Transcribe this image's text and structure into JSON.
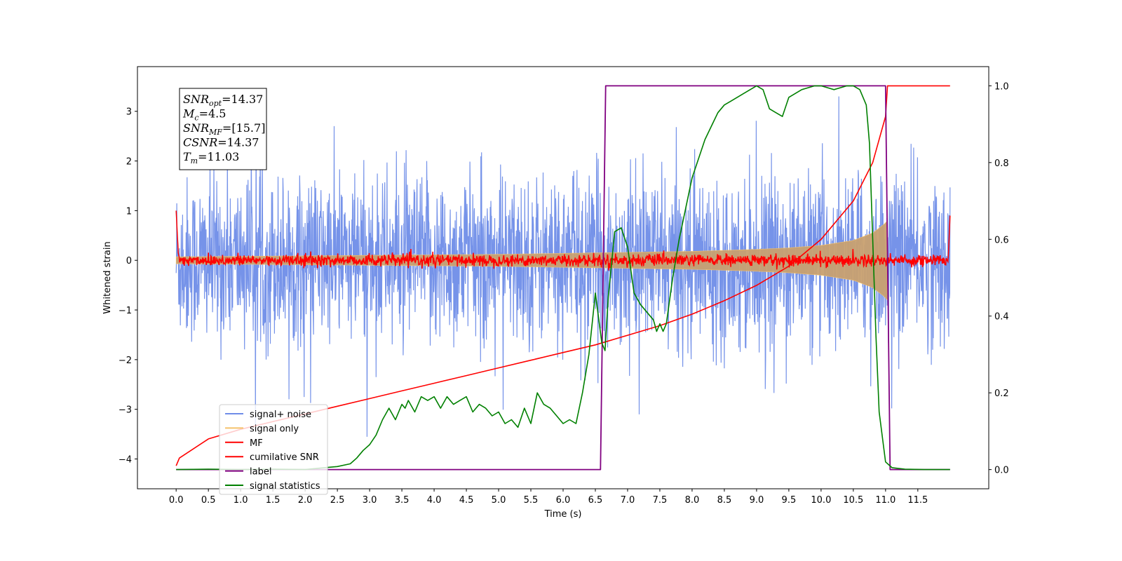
{
  "chart_data": {
    "type": "line",
    "xlabel": "Time (s)",
    "ylabel": "Whitened strain",
    "xlim": [
      -0.6,
      12.6
    ],
    "ylim": [
      -4.6,
      3.9
    ],
    "y2lim": [
      -0.05,
      1.05
    ],
    "x_ticks": [
      0.0,
      0.5,
      1.0,
      1.5,
      2.0,
      2.5,
      3.0,
      3.5,
      4.0,
      4.5,
      5.0,
      5.5,
      6.0,
      6.5,
      7.0,
      7.5,
      8.0,
      8.5,
      9.0,
      9.5,
      10.0,
      10.5,
      11.0,
      11.5
    ],
    "x_tick_labels": [
      "0.0",
      "0.5",
      "1.0",
      "1.5",
      "2.0",
      "2.5",
      "3.0",
      "3.5",
      "4.0",
      "4.5",
      "5.0",
      "5.5",
      "6.0",
      "6.5",
      "7.0",
      "7.5",
      "8.0",
      "8.5",
      "9.0",
      "9.5",
      "10.0",
      "10.5",
      "11.0",
      "11.5"
    ],
    "y_ticks": [
      3,
      2,
      1,
      0,
      -1,
      -2,
      -3,
      -4
    ],
    "y_tick_labels": [
      "3",
      "2",
      "1",
      "0",
      "−1",
      "−2",
      "−3",
      "−4"
    ],
    "y2_ticks": [
      1.0,
      0.8,
      0.6,
      0.4,
      0.2,
      0.0
    ],
    "y2_tick_labels": [
      "1.0",
      "0.8",
      "0.6",
      "0.4",
      "0.2",
      "0.0"
    ],
    "grid": false,
    "legend_position": "lower-left",
    "stats_box": {
      "lines": [
        {
          "sym": "SNR",
          "sub": "opt",
          "val": "=14.37"
        },
        {
          "sym": "M",
          "sub": "c",
          "val": "=4.5"
        },
        {
          "sym": "SNR",
          "sub": "MF",
          "val": "=[15.7]"
        },
        {
          "sym": "CSNR",
          "sub": "",
          "val": "=14.37"
        },
        {
          "sym": "T",
          "sub": "m",
          "val": "=11.03"
        }
      ]
    },
    "series": [
      {
        "name": "signal+ noise",
        "color": "#6f8de8",
        "axis": "left",
        "description_values": {
          "t_start": 0.0,
          "t_end": 12.0,
          "noise_amplitude_typical": 1.5,
          "noise_extreme_max": 3.3,
          "noise_extreme_min": -4.1
        }
      },
      {
        "name": "signal only",
        "color": "#f5c26b",
        "axis": "left",
        "envelope_t": [
          0.0,
          1.0,
          2.0,
          3.0,
          4.0,
          5.0,
          6.0,
          7.0,
          8.0,
          9.0,
          9.5,
          10.0,
          10.5,
          10.8,
          11.0,
          11.03
        ],
        "envelope_amp": [
          0.07,
          0.08,
          0.09,
          0.1,
          0.11,
          0.12,
          0.14,
          0.16,
          0.18,
          0.22,
          0.25,
          0.3,
          0.4,
          0.55,
          0.75,
          0.8
        ]
      },
      {
        "name": "MF",
        "color": "#ff0000",
        "axis": "left",
        "description_values": {
          "baseline": 0.0,
          "noise_amplitude": 0.12,
          "start_value": 1.0,
          "end_value": 0.9
        }
      },
      {
        "name": "cumilative SNR",
        "color": "#ff0000",
        "axis": "right",
        "t": [
          0.0,
          0.05,
          0.5,
          1.0,
          1.5,
          2.0,
          2.5,
          3.0,
          3.5,
          4.0,
          4.5,
          5.0,
          5.5,
          6.0,
          6.5,
          7.0,
          7.5,
          8.0,
          8.5,
          9.0,
          9.5,
          10.0,
          10.5,
          10.8,
          11.0,
          11.03,
          11.05,
          12.0
        ],
        "values": [
          0.01,
          0.03,
          0.08,
          0.105,
          0.125,
          0.145,
          0.165,
          0.185,
          0.205,
          0.225,
          0.245,
          0.265,
          0.285,
          0.305,
          0.325,
          0.35,
          0.375,
          0.405,
          0.44,
          0.48,
          0.53,
          0.6,
          0.7,
          0.8,
          0.92,
          1.0,
          1.0,
          1.0
        ]
      },
      {
        "name": "label",
        "color": "#800080",
        "axis": "right",
        "t": [
          0.0,
          6.58,
          6.66,
          11.0,
          11.07,
          12.0
        ],
        "values": [
          0.0,
          0.0,
          1.0,
          1.0,
          0.0,
          0.0
        ]
      },
      {
        "name": "signal statistics",
        "color": "#008000",
        "axis": "right",
        "t": [
          0.0,
          0.5,
          1.0,
          1.5,
          2.0,
          2.3,
          2.5,
          2.7,
          2.8,
          2.9,
          3.0,
          3.1,
          3.2,
          3.3,
          3.4,
          3.5,
          3.55,
          3.6,
          3.7,
          3.8,
          3.9,
          4.0,
          4.1,
          4.2,
          4.3,
          4.4,
          4.5,
          4.6,
          4.7,
          4.8,
          4.9,
          5.0,
          5.1,
          5.2,
          5.3,
          5.4,
          5.5,
          5.6,
          5.7,
          5.8,
          5.9,
          6.0,
          6.1,
          6.2,
          6.3,
          6.4,
          6.5,
          6.6,
          6.65,
          6.7,
          6.8,
          6.9,
          7.0,
          7.05,
          7.1,
          7.2,
          7.3,
          7.4,
          7.45,
          7.5,
          7.55,
          7.6,
          7.7,
          7.8,
          7.9,
          8.0,
          8.2,
          8.4,
          8.5,
          8.6,
          8.8,
          9.0,
          9.1,
          9.2,
          9.3,
          9.4,
          9.5,
          9.7,
          9.9,
          10.0,
          10.2,
          10.4,
          10.5,
          10.6,
          10.7,
          10.75,
          10.8,
          10.85,
          10.9,
          11.0,
          11.1,
          11.3,
          11.6,
          12.0
        ],
        "values": [
          0.0,
          0.001,
          0.0,
          0.001,
          0.0,
          0.005,
          0.008,
          0.015,
          0.03,
          0.05,
          0.065,
          0.09,
          0.13,
          0.16,
          0.13,
          0.17,
          0.16,
          0.18,
          0.15,
          0.19,
          0.18,
          0.19,
          0.16,
          0.19,
          0.17,
          0.18,
          0.19,
          0.15,
          0.17,
          0.16,
          0.14,
          0.15,
          0.12,
          0.13,
          0.11,
          0.16,
          0.12,
          0.2,
          0.17,
          0.16,
          0.14,
          0.12,
          0.13,
          0.12,
          0.2,
          0.3,
          0.46,
          0.33,
          0.31,
          0.45,
          0.62,
          0.63,
          0.58,
          0.52,
          0.46,
          0.43,
          0.41,
          0.39,
          0.36,
          0.38,
          0.36,
          0.38,
          0.5,
          0.6,
          0.68,
          0.76,
          0.86,
          0.93,
          0.95,
          0.96,
          0.98,
          1.0,
          0.99,
          0.94,
          0.93,
          0.92,
          0.97,
          0.99,
          1.0,
          1.0,
          0.99,
          1.0,
          1.0,
          0.99,
          0.95,
          0.85,
          0.6,
          0.35,
          0.15,
          0.02,
          0.005,
          0.001,
          0.0,
          0.0
        ]
      }
    ]
  }
}
